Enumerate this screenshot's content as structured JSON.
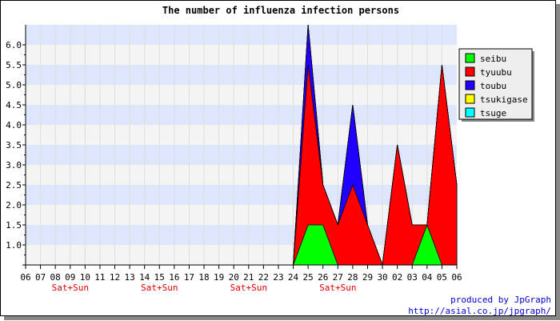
{
  "chart_data": {
    "type": "area",
    "title": "The number of influenza infection persons",
    "x": [
      "06",
      "07",
      "08",
      "09",
      "10",
      "11",
      "12",
      "13",
      "14",
      "15",
      "16",
      "17",
      "18",
      "19",
      "20",
      "21",
      "22",
      "23",
      "24",
      "25",
      "26",
      "27",
      "28",
      "29",
      "30",
      "02",
      "03",
      "04",
      "05",
      "06"
    ],
    "weekend_labels": [
      {
        "index": 3,
        "text": "Sat+Sun"
      },
      {
        "index": 9,
        "text": "Sat+Sun"
      },
      {
        "index": 15,
        "text": "Sat+Sun"
      },
      {
        "index": 21,
        "text": "Sat+Sun"
      }
    ],
    "ylim": [
      0,
      6
    ],
    "yticks": [
      "",
      "1.0",
      "1.5",
      "2.0",
      "2.5",
      "3.0",
      "3.5",
      "4.0",
      "4.5",
      "5.0",
      "5.5",
      "6.0"
    ],
    "stacked": true,
    "series": [
      {
        "name": "seibu",
        "color": "#00ff00",
        "values": [
          0,
          0,
          0,
          0,
          0,
          0,
          0,
          0,
          0,
          0,
          0,
          0,
          0,
          0,
          0,
          0,
          0,
          0,
          0,
          1,
          1,
          0,
          0,
          0,
          0,
          0,
          0,
          1,
          0,
          0
        ]
      },
      {
        "name": "tyuubu",
        "color": "#ff0000",
        "values": [
          0,
          0,
          0,
          0,
          0,
          0,
          0,
          0,
          0,
          0,
          0,
          0,
          0,
          0,
          0,
          0,
          0,
          0,
          0,
          4,
          1,
          1,
          2,
          1,
          0,
          3,
          1,
          0,
          5,
          2
        ]
      },
      {
        "name": "toubu",
        "color": "#2200ff",
        "values": [
          0,
          0,
          0,
          0,
          0,
          0,
          0,
          0,
          0,
          0,
          0,
          0,
          0,
          0,
          0,
          0,
          0,
          0,
          0,
          1,
          0,
          0,
          2,
          0,
          0,
          0,
          0,
          0,
          0,
          0
        ]
      },
      {
        "name": "tsukigase",
        "color": "#ffff00",
        "values": [
          0,
          0,
          0,
          0,
          0,
          0,
          0,
          0,
          0,
          0,
          0,
          0,
          0,
          0,
          0,
          0,
          0,
          0,
          0,
          0,
          0,
          0,
          0,
          0,
          0,
          0,
          0,
          0,
          0,
          0
        ]
      },
      {
        "name": "tsuge",
        "color": "#00ffff",
        "values": [
          0,
          0,
          0,
          0,
          0,
          0,
          0,
          0,
          0,
          0,
          0,
          0,
          0,
          0,
          0,
          0,
          0,
          0,
          0,
          0,
          0,
          0,
          0,
          0,
          0,
          0,
          0,
          0,
          0,
          0
        ]
      }
    ],
    "grid": true,
    "legend_position": "right",
    "band_colors": [
      "#f4f4f4",
      "#dde6fb"
    ]
  },
  "footer": {
    "line1": "produced by JpGraph",
    "line2": "http://asial.co.jp/jpgraph/"
  },
  "colors": {
    "weekend_label": "#dd0000",
    "footer_text": "#0000cc"
  }
}
